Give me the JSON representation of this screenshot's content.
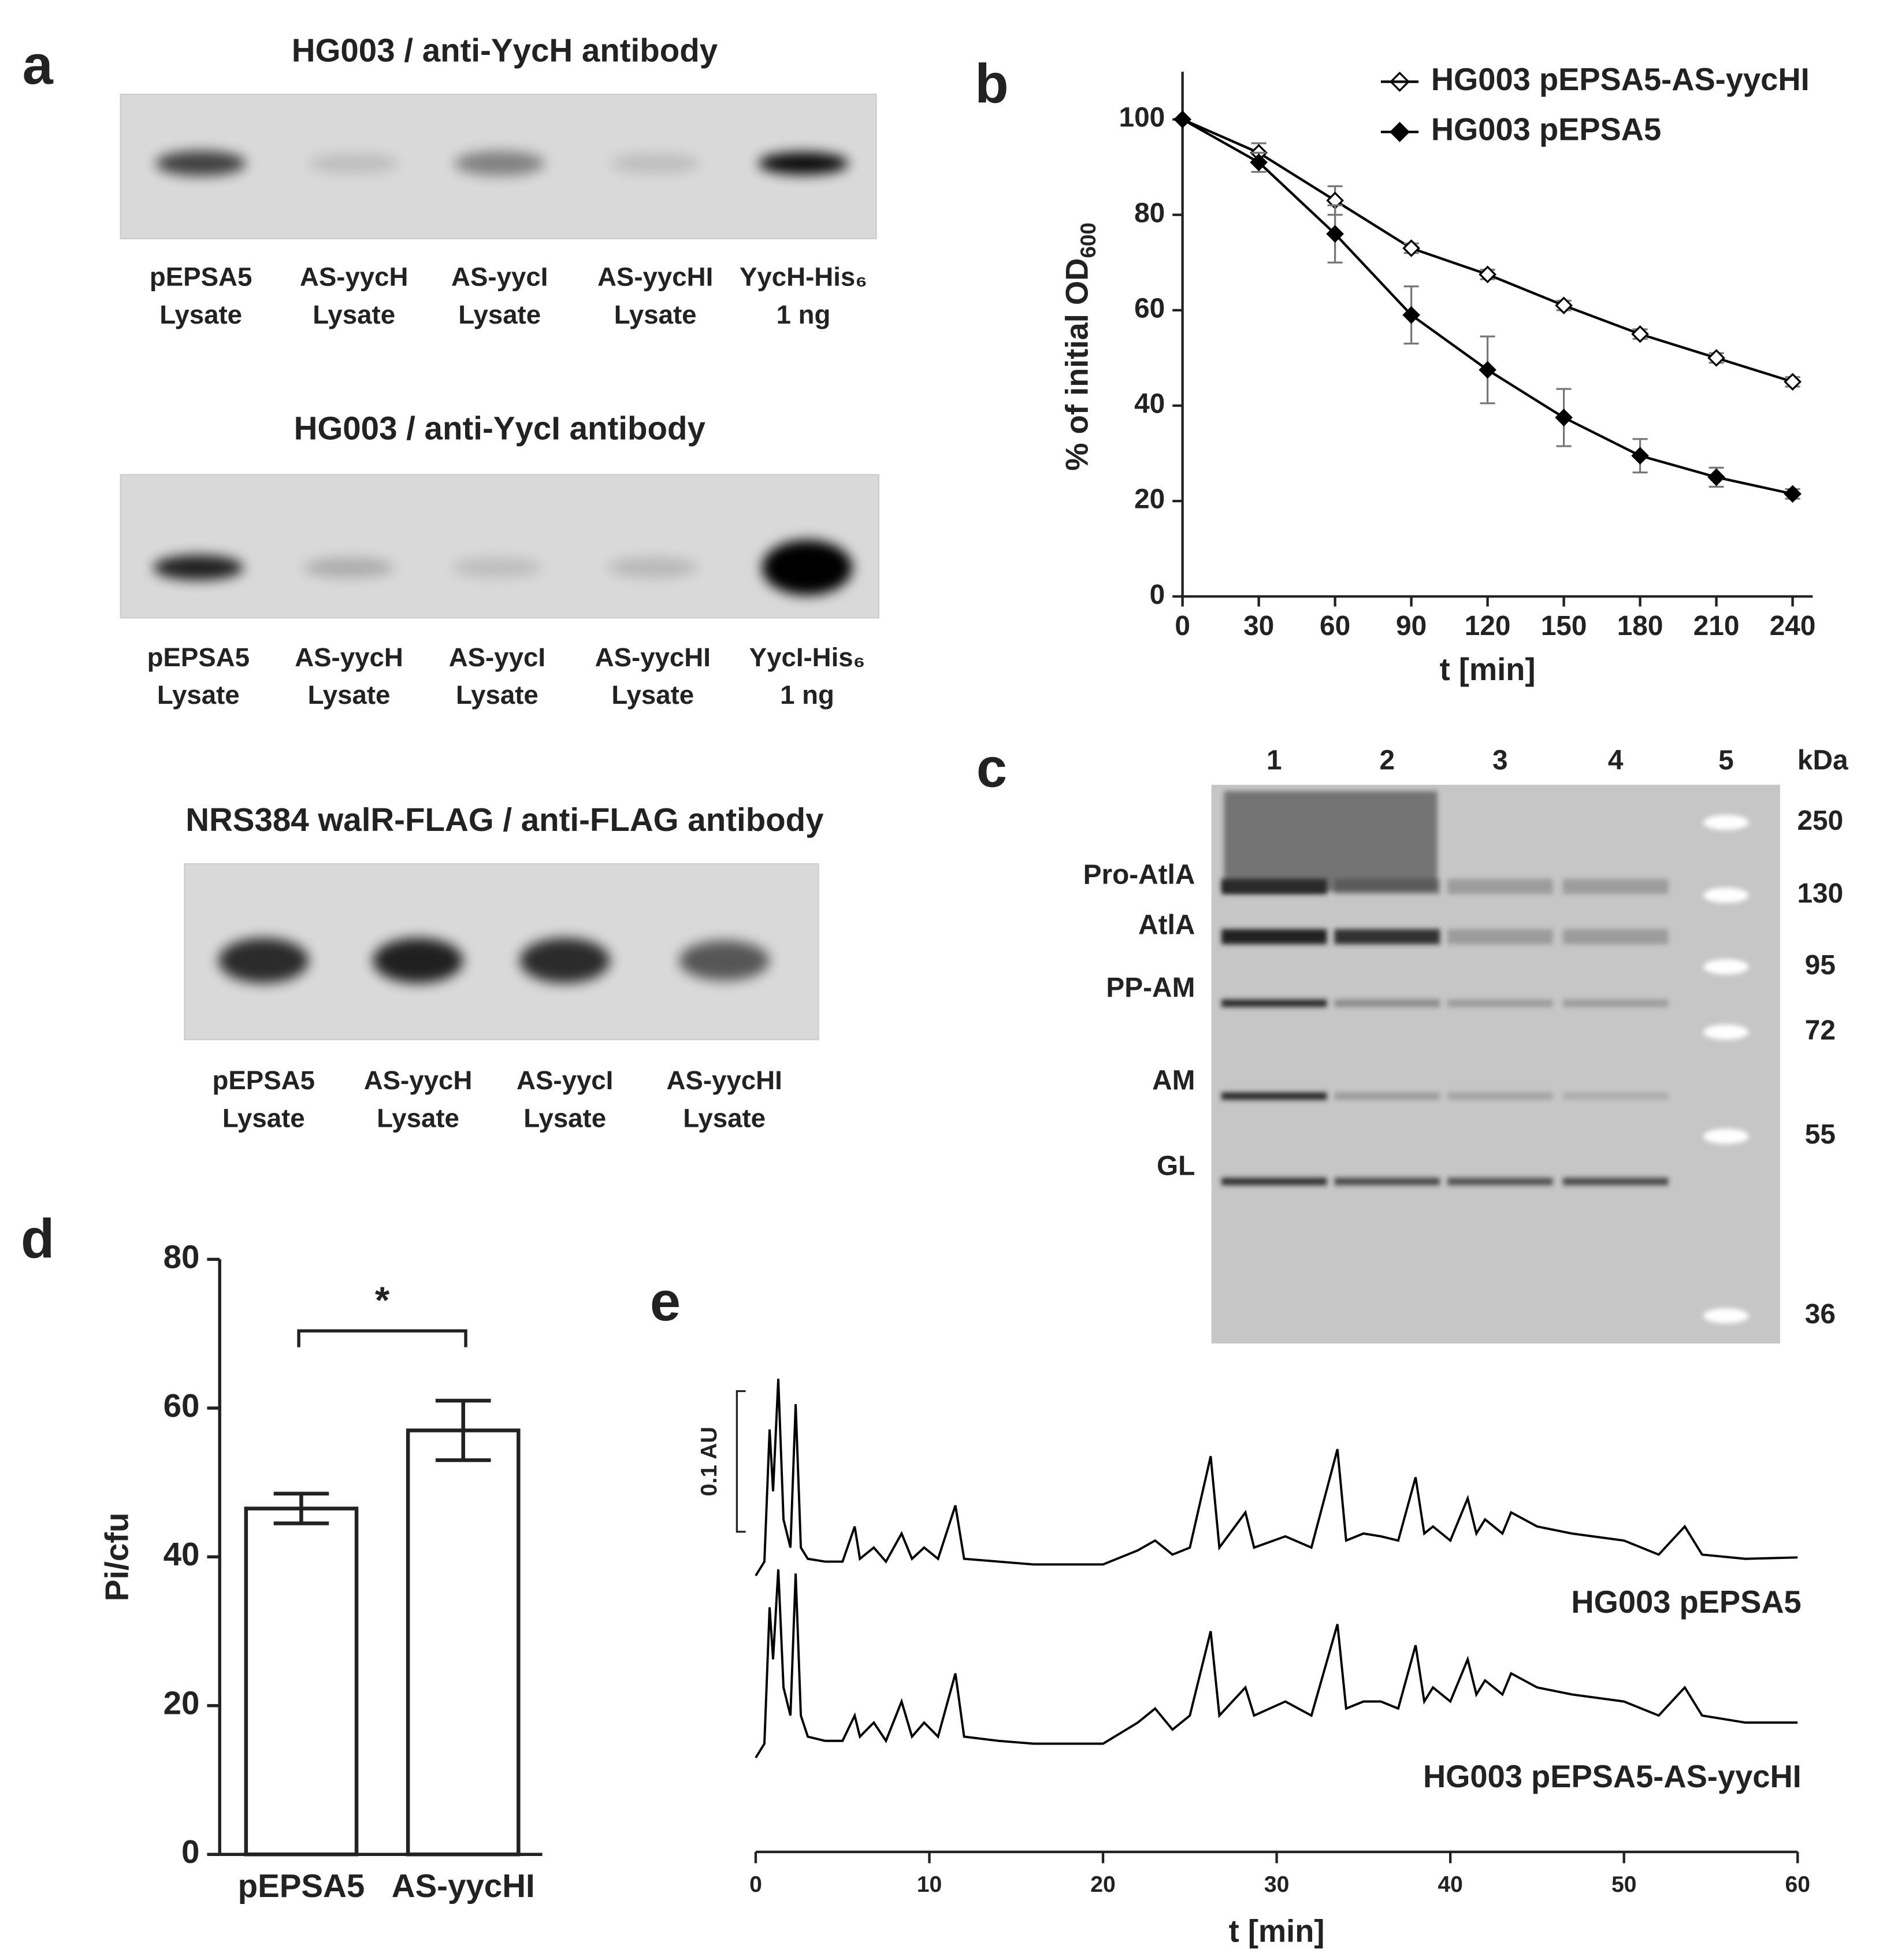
{
  "panel_labels": [
    "a",
    "b",
    "c",
    "d",
    "e"
  ],
  "blots": [
    {
      "title": "HG003 / anti-YycH antibody",
      "lanes": [
        [
          "pEPSA5",
          "Lysate"
        ],
        [
          "AS-yycH",
          "Lysate"
        ],
        [
          "AS-yycI",
          "Lysate"
        ],
        [
          "AS-yycHI",
          "Lysate"
        ],
        [
          "YycH-His₆",
          "1 ng"
        ]
      ]
    },
    {
      "title": "HG003 / anti-YycI antibody",
      "lanes": [
        [
          "pEPSA5",
          "Lysate"
        ],
        [
          "AS-yycH",
          "Lysate"
        ],
        [
          "AS-yycI",
          "Lysate"
        ],
        [
          "AS-yycHI",
          "Lysate"
        ],
        [
          "YycI-His₆",
          "1 ng"
        ]
      ]
    },
    {
      "title": "NRS384 walR-FLAG / anti-FLAG antibody",
      "lanes": [
        [
          "pEPSA5",
          "Lysate"
        ],
        [
          "AS-yycH",
          "Lysate"
        ],
        [
          "AS-yycI",
          "Lysate"
        ],
        [
          "AS-yycHI",
          "Lysate"
        ]
      ]
    }
  ],
  "gel": {
    "lanes": [
      1,
      2,
      3,
      4,
      5
    ],
    "unit": "kDa",
    "markers": [
      250,
      130,
      95,
      72,
      55,
      36
    ],
    "bands": [
      "Pro-AtlA",
      "AtlA",
      "PP-AM",
      "AM",
      "GL"
    ]
  },
  "chart_data": [
    {
      "type": "line",
      "xlabel": "t [min]",
      "ylabel": "% of initial OD",
      "ylabel_subscript": "600",
      "x": [
        0,
        30,
        60,
        90,
        120,
        150,
        180,
        210,
        240
      ],
      "xlim": [
        0,
        240
      ],
      "xticks": [
        0,
        30,
        60,
        90,
        120,
        150,
        180,
        210,
        240
      ],
      "ylim": [
        0,
        110
      ],
      "yticks": [
        0,
        20,
        40,
        60,
        80,
        100
      ],
      "legend": "upper right",
      "series": [
        {
          "name": "HG003 pEPSA5-AS-yycHI",
          "color": "#000000",
          "marker": "open-diamond",
          "values": [
            100,
            93,
            83,
            73,
            67.5,
            61,
            55,
            50,
            45
          ],
          "errors": [
            0,
            2,
            3,
            1,
            1,
            1,
            1,
            1,
            1
          ]
        },
        {
          "name": "HG003 pEPSA5",
          "color": "#000000",
          "marker": "filled-diamond",
          "values": [
            100,
            91,
            76,
            59,
            47.5,
            37.5,
            29.5,
            25,
            21.5
          ],
          "errors": [
            0,
            2,
            6,
            6,
            7,
            6,
            3.5,
            2,
            1
          ]
        }
      ]
    },
    {
      "type": "bar",
      "ylabel": "Pi/cfu",
      "categories": [
        "pEPSA5",
        "AS-yycHI"
      ],
      "values": [
        46.5,
        57
      ],
      "errors": [
        2,
        4
      ],
      "color": "#ffffff",
      "ylim": [
        0,
        80
      ],
      "yticks": [
        0,
        20,
        40,
        60,
        80
      ],
      "significance": "*"
    },
    {
      "type": "trace",
      "xlabel": "t [min]",
      "xlim": [
        0,
        60
      ],
      "xticks": [
        0,
        10,
        20,
        30,
        40,
        50,
        60
      ],
      "scale_bar": {
        "value": 0.1,
        "label": "0.1 AU"
      },
      "x": [
        0,
        0.5,
        0.8,
        1.0,
        1.3,
        1.6,
        2.0,
        2.3,
        2.6,
        3,
        4,
        5,
        5.7,
        6,
        6.8,
        7.5,
        8.4,
        9,
        9.7,
        10.5,
        11.5,
        12,
        14,
        16,
        18,
        20,
        22,
        23,
        24,
        25,
        26.2,
        26.7,
        28.2,
        28.7,
        30.5,
        32,
        33.5,
        34,
        35,
        36,
        37,
        38,
        38.5,
        39,
        40,
        41,
        41.5,
        42,
        43,
        43.5,
        45,
        47,
        50,
        52,
        53.5,
        54.5,
        57,
        60
      ],
      "series": [
        {
          "name": "HG003 pEPSA5",
          "color": "#000000",
          "values": [
            0,
            0.01,
            0.104,
            0.06,
            0.14,
            0.04,
            0.02,
            0.122,
            0.02,
            0.012,
            0.01,
            0.01,
            0.035,
            0.012,
            0.02,
            0.01,
            0.03,
            0.012,
            0.02,
            0.012,
            0.05,
            0.012,
            0.01,
            0.008,
            0.008,
            0.008,
            0.018,
            0.025,
            0.015,
            0.02,
            0.085,
            0.02,
            0.045,
            0.02,
            0.028,
            0.02,
            0.09,
            0.025,
            0.03,
            0.028,
            0.025,
            0.07,
            0.03,
            0.035,
            0.025,
            0.055,
            0.03,
            0.04,
            0.03,
            0.045,
            0.035,
            0.03,
            0.025,
            0.015,
            0.035,
            0.015,
            0.012,
            0.013
          ]
        },
        {
          "name": "HG003 pEPSA5-AS-yycHI",
          "color": "#000000",
          "values": [
            0,
            0.01,
            0.107,
            0.07,
            0.134,
            0.05,
            0.03,
            0.131,
            0.03,
            0.015,
            0.012,
            0.012,
            0.03,
            0.015,
            0.025,
            0.012,
            0.04,
            0.015,
            0.025,
            0.015,
            0.06,
            0.015,
            0.012,
            0.01,
            0.01,
            0.01,
            0.025,
            0.035,
            0.02,
            0.03,
            0.09,
            0.03,
            0.05,
            0.03,
            0.04,
            0.03,
            0.095,
            0.035,
            0.04,
            0.04,
            0.035,
            0.08,
            0.04,
            0.05,
            0.04,
            0.07,
            0.045,
            0.055,
            0.045,
            0.06,
            0.05,
            0.045,
            0.04,
            0.03,
            0.05,
            0.03,
            0.025,
            0.025
          ]
        }
      ]
    }
  ]
}
